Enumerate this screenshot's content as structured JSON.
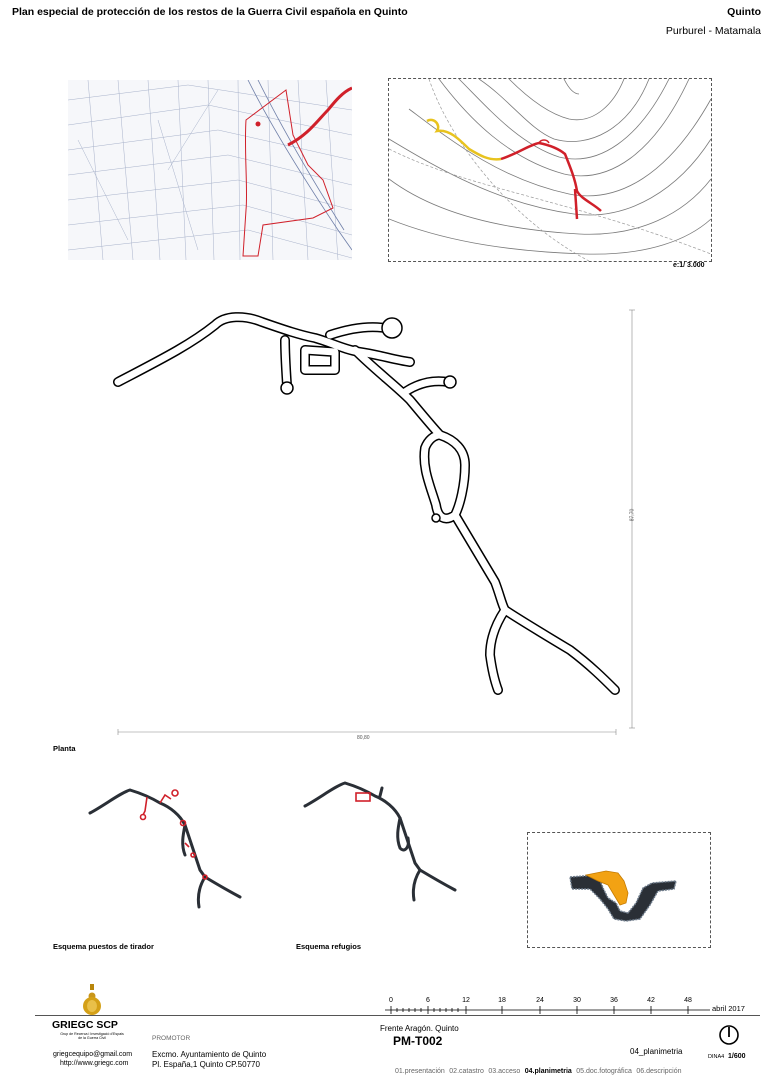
{
  "header": {
    "title": "Plan especial de protección de los restos de la Guerra Civil española en Quinto",
    "location": "Quinto",
    "site": "Purburel - Matamala"
  },
  "topo_scale": "e:1/ 3.000",
  "plan": {
    "label": "Planta",
    "dim_horizontal": "80,80",
    "dim_vertical": "87,70"
  },
  "schemes": {
    "tirador_label": "Esquema puestos de tirador",
    "refugios_label": "Esquema refugios"
  },
  "footer": {
    "org_name": "GRIEGC SCP",
    "org_sub1": "Grup de Recerca i Investigació d'Espais",
    "org_sub2": "de la Guerra Civil",
    "email": "griegcequipo@gmail.com",
    "web": "http://www.griegc.com",
    "promotor_label": "PROMOTOR",
    "promotor_name": "Excmo. Ayuntamiento de Quinto",
    "promotor_address": "Pl. España,1  Quinto  CP.50770",
    "date": "abril 2017",
    "ruler_ticks": [
      "0",
      "6",
      "12",
      "18",
      "24",
      "30",
      "36",
      "42",
      "48"
    ],
    "front": "Frente Aragón. Quinto",
    "code": "PM-T002",
    "section": "04_planimetria",
    "sheet_format": "DINA4",
    "sheet_scale": "1/600",
    "nav": [
      {
        "label": "01.presentación",
        "active": false
      },
      {
        "label": "02.catastro",
        "active": false
      },
      {
        "label": "03.acceso",
        "active": false
      },
      {
        "label": "04.planimetria",
        "active": true
      },
      {
        "label": "05.doc.fotográfica",
        "active": false
      },
      {
        "label": "06.descripción",
        "active": false
      }
    ]
  },
  "colors": {
    "red": "#d0202a",
    "yellow": "#e8c31f",
    "orange": "#f2a213",
    "dark": "#2a2f36"
  }
}
